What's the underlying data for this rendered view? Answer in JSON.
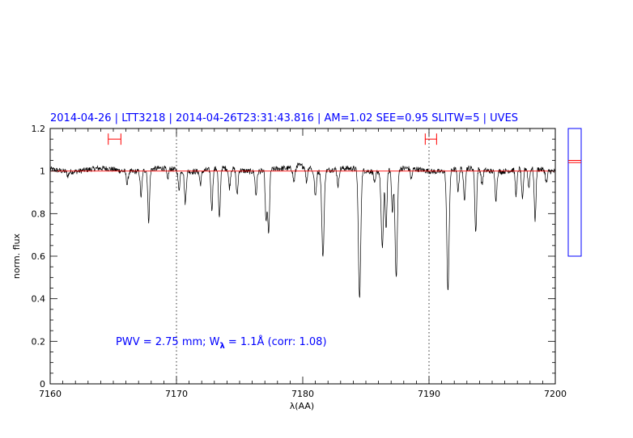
{
  "chart_data": {
    "type": "line",
    "title": "2014-04-26 | LTT3218 | 2014-04-26T23:31:43.816 | AM=1.02 SEE=0.95 SLITW=5 | UVES",
    "xlabel": "λ(AA)",
    "ylabel": "norm. flux",
    "xlim": [
      7160,
      7200
    ],
    "ylim": [
      0,
      1.2
    ],
    "x_ticks": [
      "7160",
      "7170",
      "7180",
      "7190",
      "7200"
    ],
    "y_ticks": [
      "0",
      "0.2",
      "0.4",
      "0.6",
      "0.8",
      "1",
      "1.2"
    ],
    "grid": false,
    "vertical_reference_lines": [
      7170,
      7190
    ],
    "continuum_level": 1.0,
    "fit_windows": [
      [
        7164.6,
        7165.6
      ],
      [
        7189.7,
        7190.6
      ]
    ],
    "absorption_lines": [
      {
        "center": 7161.4,
        "depth": 0.02
      },
      {
        "center": 7166.1,
        "depth": 0.06
      },
      {
        "center": 7167.2,
        "depth": 0.12
      },
      {
        "center": 7167.8,
        "depth": 0.24
      },
      {
        "center": 7169.3,
        "depth": 0.05
      },
      {
        "center": 7170.2,
        "depth": 0.09
      },
      {
        "center": 7170.7,
        "depth": 0.15
      },
      {
        "center": 7171.9,
        "depth": 0.06
      },
      {
        "center": 7172.8,
        "depth": 0.19
      },
      {
        "center": 7173.4,
        "depth": 0.24
      },
      {
        "center": 7174.2,
        "depth": 0.09
      },
      {
        "center": 7174.8,
        "depth": 0.12
      },
      {
        "center": 7176.3,
        "depth": 0.11
      },
      {
        "center": 7177.1,
        "depth": 0.24
      },
      {
        "center": 7177.3,
        "depth": 0.3
      },
      {
        "center": 7179.3,
        "depth": 0.06
      },
      {
        "center": 7180.3,
        "depth": 0.07
      },
      {
        "center": 7181.0,
        "depth": 0.12
      },
      {
        "center": 7181.6,
        "depth": 0.4
      },
      {
        "center": 7182.8,
        "depth": 0.08
      },
      {
        "center": 7184.5,
        "depth": 0.61
      },
      {
        "center": 7185.7,
        "depth": 0.06
      },
      {
        "center": 7186.3,
        "depth": 0.36
      },
      {
        "center": 7186.6,
        "depth": 0.27
      },
      {
        "center": 7187.1,
        "depth": 0.19
      },
      {
        "center": 7187.4,
        "depth": 0.51
      },
      {
        "center": 7188.6,
        "depth": 0.05
      },
      {
        "center": 7191.5,
        "depth": 0.56
      },
      {
        "center": 7192.3,
        "depth": 0.1
      },
      {
        "center": 7192.8,
        "depth": 0.15
      },
      {
        "center": 7193.7,
        "depth": 0.3
      },
      {
        "center": 7194.2,
        "depth": 0.07
      },
      {
        "center": 7195.3,
        "depth": 0.13
      },
      {
        "center": 7196.9,
        "depth": 0.12
      },
      {
        "center": 7197.4,
        "depth": 0.15
      },
      {
        "center": 7197.9,
        "depth": 0.09
      },
      {
        "center": 7198.4,
        "depth": 0.24
      },
      {
        "center": 7199.3,
        "depth": 0.06
      }
    ],
    "annotation": {
      "pwv_text": "PWV = 2.75 mm;",
      "w_symbol": "W",
      "w_subscript": "λ",
      "w_rest": "= 1.1Å (corr: 1.08)"
    },
    "side_panel": {
      "ylim": [
        0,
        1.2
      ],
      "box_range": [
        0.6,
        1.2
      ],
      "markers": [
        1.04,
        1.05
      ]
    },
    "colors": {
      "title": "#0000ff",
      "annotation": "#0000ff",
      "spectrum": "#000000",
      "continuum": "#ff0000",
      "fit_windows": "#ff0000",
      "side_panel_frame": "#0000ff",
      "side_panel_markers": "#ff0000"
    }
  }
}
